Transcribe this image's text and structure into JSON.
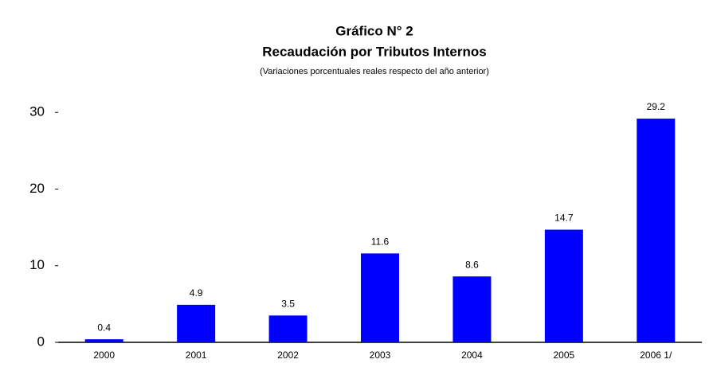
{
  "chart_data": {
    "type": "bar",
    "title": "Gráfico N° 2",
    "subtitle": "Recaudación por Tributos Internos",
    "note": "(Variaciones porcentuales reales respecto del año anterior)",
    "categories": [
      "2000",
      "2001",
      "2002",
      "2003",
      "2004",
      "2005",
      "2006 1/"
    ],
    "values": [
      0.4,
      4.9,
      3.5,
      11.6,
      8.6,
      14.7,
      29.2
    ],
    "color": "#0000ff",
    "ylim": [
      0,
      32
    ],
    "yticks": [
      0,
      10,
      20,
      30
    ],
    "grid": false
  }
}
